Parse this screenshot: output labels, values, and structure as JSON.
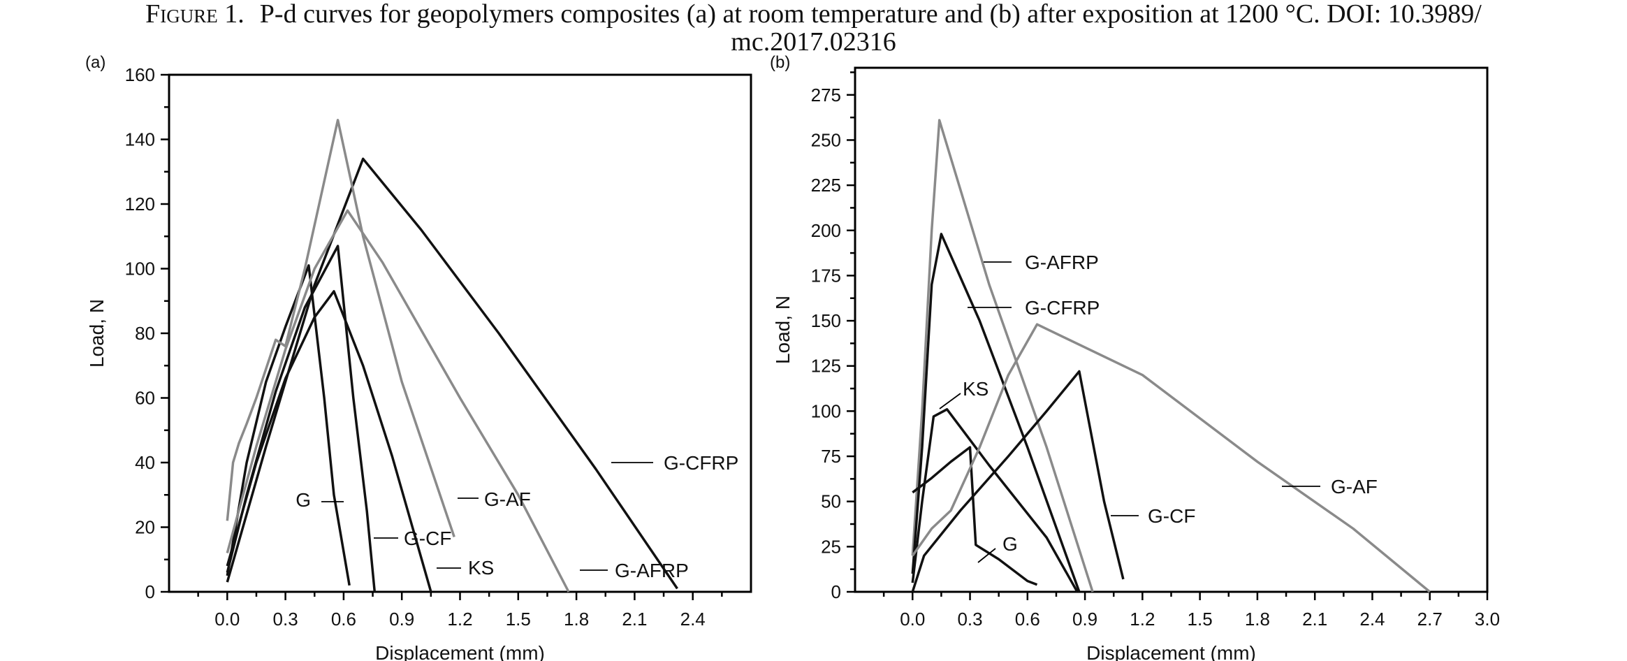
{
  "caption": {
    "label": "Figure 1.",
    "line1": "P-d curves for geopolymers composites (a) at room temperature and (b) after exposition at 1200 °C. DOI: 10.3989/",
    "line2": "mc.2017.02316"
  },
  "colors": {
    "black_series": "#111111",
    "gray_series": "#8a8a8a",
    "axis": "#000000"
  },
  "chart_data": [
    {
      "type": "line",
      "panel_label": "(a)",
      "xlabel": "Displacement (mm)",
      "ylabel": "Load, N",
      "xlim": [
        -0.3,
        2.7
      ],
      "ylim": [
        0,
        160
      ],
      "xticks": [
        0.0,
        0.3,
        0.6,
        0.9,
        1.2,
        1.5,
        1.8,
        2.1,
        2.4
      ],
      "xtick_labels": [
        "0.0",
        "0.3",
        "0.6",
        "0.9",
        "1.2",
        "1.5",
        "1.8",
        "2.1",
        "2.4"
      ],
      "yticks": [
        0,
        20,
        40,
        60,
        80,
        100,
        120,
        140,
        160
      ],
      "ytick_labels": [
        "0",
        "20",
        "40",
        "60",
        "80",
        "100",
        "120",
        "140",
        "160"
      ],
      "grid": false,
      "series": [
        {
          "name": "G",
          "color": "black",
          "points": [
            [
              0.0,
              5
            ],
            [
              0.1,
              40
            ],
            [
              0.2,
              65
            ],
            [
              0.3,
              82
            ],
            [
              0.42,
              101
            ],
            [
              0.5,
              60
            ],
            [
              0.55,
              30
            ],
            [
              0.63,
              2
            ]
          ]
        },
        {
          "name": "G-CF",
          "color": "black",
          "points": [
            [
              0.0,
              6
            ],
            [
              0.1,
              30
            ],
            [
              0.25,
              62
            ],
            [
              0.4,
              88
            ],
            [
              0.57,
              107
            ],
            [
              0.65,
              60
            ],
            [
              0.72,
              25
            ],
            [
              0.76,
              0
            ]
          ]
        },
        {
          "name": "KS",
          "color": "black",
          "points": [
            [
              0.0,
              8
            ],
            [
              0.15,
              40
            ],
            [
              0.3,
              66
            ],
            [
              0.45,
              85
            ],
            [
              0.55,
              93
            ],
            [
              0.7,
              70
            ],
            [
              0.85,
              42
            ],
            [
              1.05,
              0
            ]
          ]
        },
        {
          "name": "G-CFRP",
          "color": "black",
          "points": [
            [
              0.0,
              3
            ],
            [
              0.2,
              45
            ],
            [
              0.45,
              95
            ],
            [
              0.7,
              134
            ],
            [
              1.0,
              112
            ],
            [
              1.4,
              80
            ],
            [
              1.9,
              38
            ],
            [
              2.32,
              1
            ]
          ]
        },
        {
          "name": "G-AF",
          "color": "gray",
          "points": [
            [
              0.0,
              22
            ],
            [
              0.03,
              40
            ],
            [
              0.06,
              46
            ],
            [
              0.1,
              52
            ],
            [
              0.15,
              60
            ],
            [
              0.25,
              78
            ],
            [
              0.3,
              76
            ],
            [
              0.4,
              100
            ],
            [
              0.57,
              146
            ],
            [
              0.7,
              110
            ],
            [
              0.9,
              65
            ],
            [
              1.17,
              17
            ]
          ]
        },
        {
          "name": "G-AFRP",
          "color": "gray",
          "points": [
            [
              0.0,
              12
            ],
            [
              0.15,
              45
            ],
            [
              0.3,
              75
            ],
            [
              0.45,
              100
            ],
            [
              0.62,
              118
            ],
            [
              0.8,
              102
            ],
            [
              1.2,
              60
            ],
            [
              1.5,
              30
            ],
            [
              1.76,
              0
            ]
          ]
        }
      ],
      "annotations": [
        {
          "text": "G",
          "series": "G"
        },
        {
          "text": "G-CF",
          "series": "G-CF"
        },
        {
          "text": "KS",
          "series": "KS"
        },
        {
          "text": "G-CFRP",
          "series": "G-CFRP"
        },
        {
          "text": "G-AF",
          "series": "G-AF"
        },
        {
          "text": "G-AFRP",
          "series": "G-AFRP"
        }
      ]
    },
    {
      "type": "line",
      "panel_label": "(b)",
      "xlabel": "Displacement (mm)",
      "ylabel": "Load, N",
      "xlim": [
        -0.3,
        3.0
      ],
      "ylim": [
        0,
        290
      ],
      "xticks": [
        0.0,
        0.3,
        0.6,
        0.9,
        1.2,
        1.5,
        1.8,
        2.1,
        2.4,
        2.7,
        3.0
      ],
      "xtick_labels": [
        "0.0",
        "0.3",
        "0.6",
        "0.9",
        "1.2",
        "1.5",
        "1.8",
        "2.1",
        "2.4",
        "2.7",
        "3.0"
      ],
      "yticks": [
        0,
        25,
        50,
        75,
        100,
        125,
        150,
        175,
        200,
        225,
        250,
        275
      ],
      "ytick_labels": [
        "0",
        "25",
        "50",
        "75",
        "100",
        "125",
        "150",
        "175",
        "200",
        "225",
        "250",
        "275"
      ],
      "grid": false,
      "series": [
        {
          "name": "G-AFRP",
          "color": "gray",
          "points": [
            [
              0.0,
              20
            ],
            [
              0.05,
              100
            ],
            [
              0.1,
              200
            ],
            [
              0.14,
              261
            ],
            [
              0.4,
              170
            ],
            [
              0.7,
              80
            ],
            [
              0.94,
              0
            ]
          ]
        },
        {
          "name": "G-CFRP",
          "color": "black",
          "points": [
            [
              0.0,
              10
            ],
            [
              0.05,
              80
            ],
            [
              0.1,
              170
            ],
            [
              0.15,
              198
            ],
            [
              0.35,
              150
            ],
            [
              0.6,
              80
            ],
            [
              0.87,
              0
            ]
          ]
        },
        {
          "name": "KS",
          "color": "black",
          "points": [
            [
              0.0,
              5
            ],
            [
              0.05,
              50
            ],
            [
              0.11,
              97
            ],
            [
              0.18,
              101
            ],
            [
              0.4,
              70
            ],
            [
              0.7,
              30
            ],
            [
              0.86,
              0
            ]
          ]
        },
        {
          "name": "G",
          "color": "black",
          "points": [
            [
              0.0,
              55
            ],
            [
              0.1,
              63
            ],
            [
              0.2,
              72
            ],
            [
              0.3,
              80
            ],
            [
              0.33,
              26
            ],
            [
              0.45,
              18
            ],
            [
              0.6,
              6
            ],
            [
              0.65,
              4
            ]
          ]
        },
        {
          "name": "G-CF",
          "color": "black",
          "points": [
            [
              0.0,
              0
            ],
            [
              0.06,
              20
            ],
            [
              0.25,
              45
            ],
            [
              0.5,
              75
            ],
            [
              0.7,
              100
            ],
            [
              0.87,
              122
            ],
            [
              1.0,
              50
            ],
            [
              1.1,
              7
            ]
          ]
        },
        {
          "name": "G-AF",
          "color": "gray",
          "points": [
            [
              0.0,
              20
            ],
            [
              0.1,
              35
            ],
            [
              0.2,
              45
            ],
            [
              0.35,
              80
            ],
            [
              0.5,
              120
            ],
            [
              0.65,
              148
            ],
            [
              1.2,
              120
            ],
            [
              1.8,
              72
            ],
            [
              2.3,
              35
            ],
            [
              2.7,
              0
            ]
          ]
        }
      ],
      "annotations": [
        {
          "text": "G-AFRP",
          "series": "G-AFRP"
        },
        {
          "text": "G-CFRP",
          "series": "G-CFRP"
        },
        {
          "text": "KS",
          "series": "KS"
        },
        {
          "text": "G",
          "series": "G"
        },
        {
          "text": "G-CF",
          "series": "G-CF"
        },
        {
          "text": "G-AF",
          "series": "G-AF"
        }
      ]
    }
  ]
}
